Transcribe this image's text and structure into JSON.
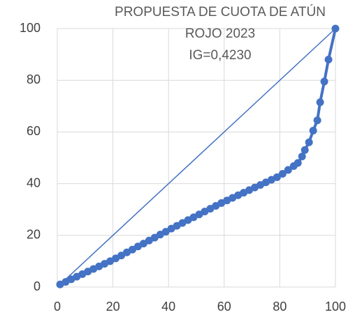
{
  "chart_data": {
    "type": "line",
    "title": [
      "PROPUESTA DE CUOTA DE ATÚN",
      "ROJO 2023",
      "IG=0,4230"
    ],
    "xlim": [
      0,
      100
    ],
    "xticks": [
      0,
      20,
      40,
      60,
      80,
      100
    ],
    "ylim": [
      0,
      100
    ],
    "yticks": [
      0,
      20,
      40,
      60,
      80,
      100
    ],
    "grid": true,
    "series": [
      {
        "color": "#4472c4",
        "markers": true,
        "x": [
          1,
          3,
          5,
          7,
          9,
          11,
          13,
          15,
          17,
          19,
          21,
          23,
          25,
          27,
          29,
          31,
          33,
          35,
          37,
          39,
          41,
          43,
          45,
          47,
          49,
          51,
          53,
          55,
          57,
          59,
          61,
          63,
          65,
          67,
          69,
          71,
          73,
          75,
          77,
          79,
          81,
          83,
          85,
          86.5,
          88,
          89,
          90.5,
          92,
          93.5,
          94.5,
          96,
          97.5,
          100
        ],
        "values": [
          1.0,
          2.0,
          3.0,
          4.0,
          5.0,
          6.0,
          7.0,
          8.0,
          9.0,
          10.0,
          11.1,
          12.2,
          13.4,
          14.5,
          15.7,
          16.8,
          18.0,
          19.1,
          20.3,
          21.4,
          22.6,
          23.7,
          24.8,
          25.9,
          27.0,
          28.1,
          29.2,
          30.3,
          31.4,
          32.5,
          33.5,
          34.5,
          35.5,
          36.5,
          37.5,
          38.5,
          39.5,
          40.5,
          41.5,
          42.5,
          43.8,
          45.3,
          46.8,
          48,
          50.5,
          53,
          56,
          60.5,
          64.5,
          71.5,
          79.5,
          88,
          100
        ]
      },
      {
        "color": "#4472c4",
        "markers": false,
        "x": [
          1,
          100
        ],
        "values": [
          1,
          100
        ]
      }
    ]
  }
}
